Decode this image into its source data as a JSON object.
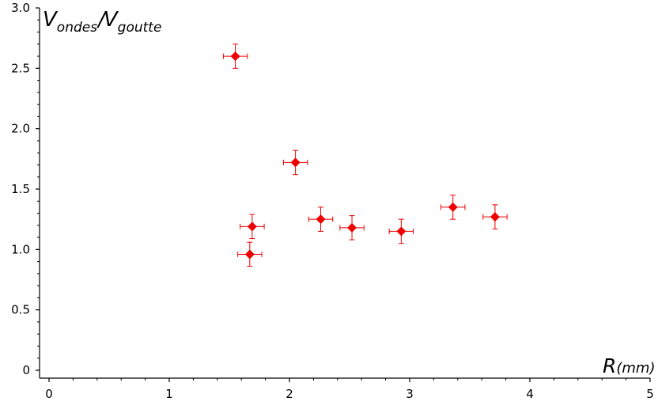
{
  "chart_data": {
    "type": "scatter",
    "title": "",
    "xlabel": "R",
    "xlabel_unit": "(mm)",
    "ylabel_parts": {
      "num": "V",
      "num_sub": "ondes",
      "slash": "/",
      "den": "V",
      "den_sub": "goutte"
    },
    "xlim": [
      0,
      5
    ],
    "ylim": [
      0,
      3.0
    ],
    "x_ticks": [
      0,
      1,
      2,
      3,
      4,
      5
    ],
    "x_tick_labels": [
      "0",
      "1",
      "2",
      "3",
      "4",
      "5"
    ],
    "y_ticks": [
      0,
      0.5,
      1.0,
      1.5,
      2.0,
      2.5,
      3.0
    ],
    "y_tick_labels": [
      "0",
      "0.5",
      "1.0",
      "1.5",
      "2.0",
      "2.5",
      "3.0"
    ],
    "grid": false,
    "marker": "diamond",
    "color": "#ee0000",
    "points": [
      {
        "x": 1.55,
        "y": 2.6,
        "xerr": 0.1,
        "yerr": 0.1
      },
      {
        "x": 2.05,
        "y": 1.72,
        "xerr": 0.1,
        "yerr": 0.1
      },
      {
        "x": 1.69,
        "y": 1.19,
        "xerr": 0.1,
        "yerr": 0.1
      },
      {
        "x": 1.67,
        "y": 0.96,
        "xerr": 0.1,
        "yerr": 0.1
      },
      {
        "x": 2.26,
        "y": 1.25,
        "xerr": 0.1,
        "yerr": 0.1
      },
      {
        "x": 2.52,
        "y": 1.18,
        "xerr": 0.1,
        "yerr": 0.1
      },
      {
        "x": 2.93,
        "y": 1.15,
        "xerr": 0.1,
        "yerr": 0.1
      },
      {
        "x": 3.36,
        "y": 1.35,
        "xerr": 0.1,
        "yerr": 0.1
      },
      {
        "x": 3.71,
        "y": 1.27,
        "xerr": 0.1,
        "yerr": 0.1
      }
    ]
  }
}
